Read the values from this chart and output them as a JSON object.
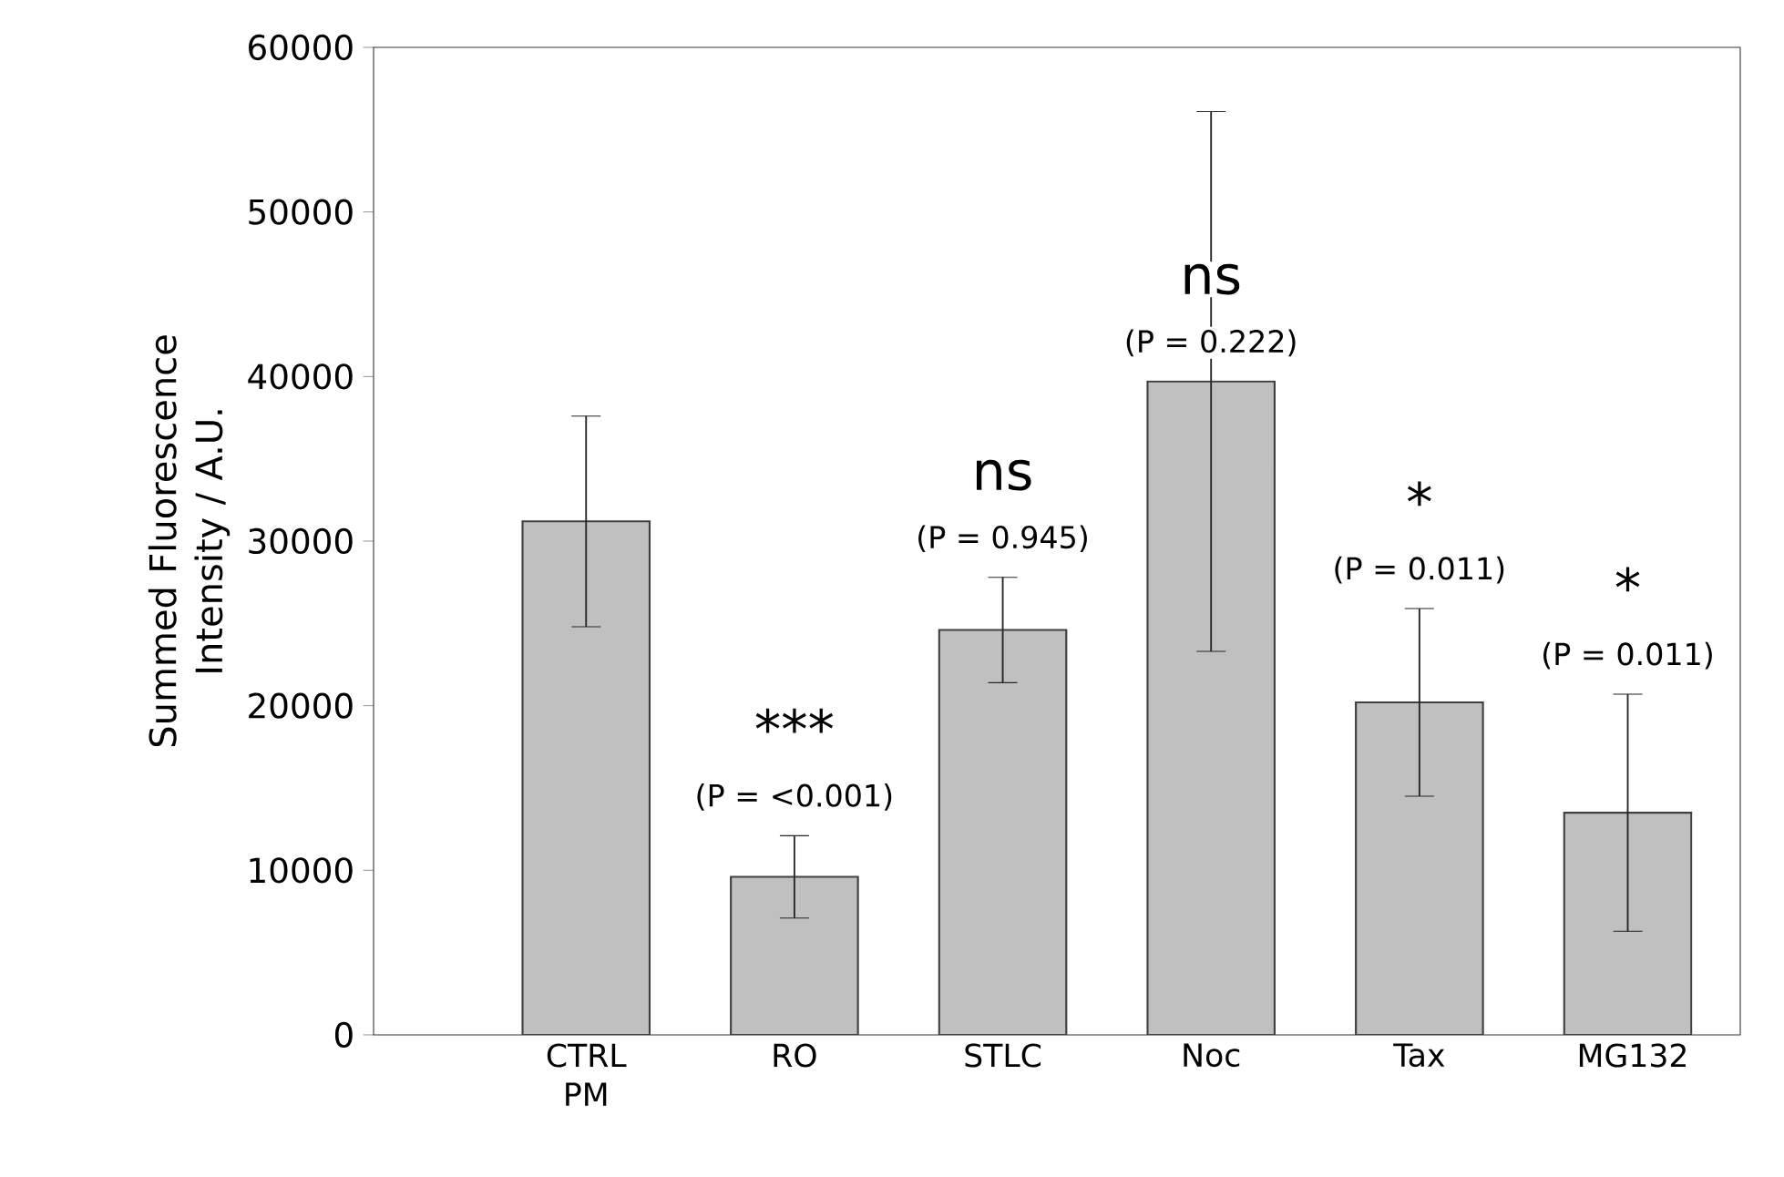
{
  "chart_data": {
    "type": "bar",
    "ylabel": "Summed Fluorescence Intensity / A.U.",
    "categories": [
      "CTRL PM",
      "RO",
      "STLC",
      "Noc",
      "Tax",
      "MG132"
    ],
    "values": [
      31200,
      9600,
      24600,
      39700,
      20200,
      13500
    ],
    "errors": [
      6400,
      2500,
      3200,
      16400,
      5700,
      7200
    ],
    "color": "#c0c0c0",
    "ylim": [
      0,
      60000
    ],
    "yticks": [
      0,
      10000,
      20000,
      30000,
      40000,
      50000,
      60000
    ],
    "grid": false,
    "annotations": [
      "***",
      "(P = <0.001)",
      "ns",
      "(P = 0.945)",
      "ns",
      "(P = 0.222)",
      "*",
      "(P = 0.011)",
      "*",
      "(P = 0.011)"
    ]
  }
}
